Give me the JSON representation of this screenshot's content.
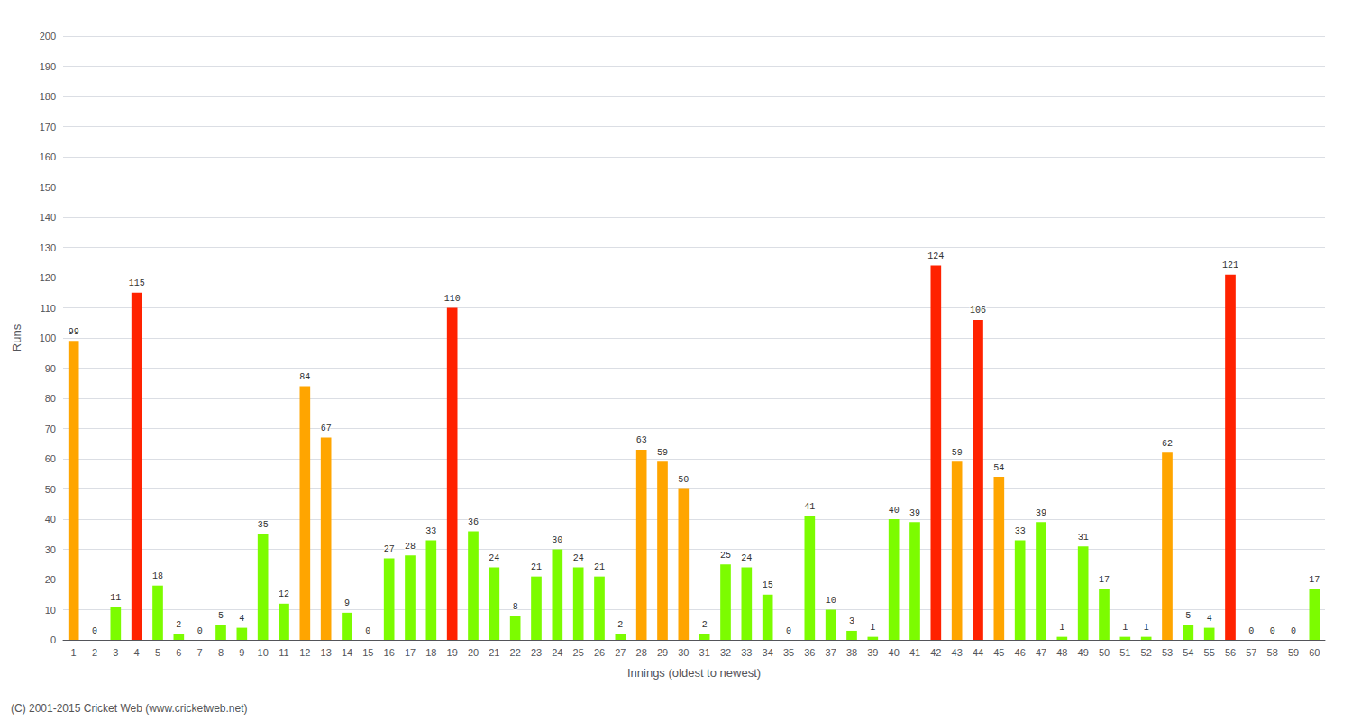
{
  "chart_data": {
    "type": "bar",
    "xlabel": "Innings (oldest to newest)",
    "ylabel": "Runs",
    "categories": [
      "1",
      "2",
      "3",
      "4",
      "5",
      "6",
      "7",
      "8",
      "9",
      "10",
      "11",
      "12",
      "13",
      "14",
      "15",
      "16",
      "17",
      "18",
      "19",
      "20",
      "21",
      "22",
      "23",
      "24",
      "25",
      "26",
      "27",
      "28",
      "29",
      "30",
      "31",
      "32",
      "33",
      "34",
      "35",
      "36",
      "37",
      "38",
      "39",
      "40",
      "41",
      "42",
      "43",
      "44",
      "45",
      "46",
      "47",
      "48",
      "49",
      "50",
      "51",
      "52",
      "53",
      "54",
      "55",
      "56",
      "57",
      "58",
      "59",
      "60"
    ],
    "values": [
      99,
      0,
      11,
      115,
      18,
      2,
      0,
      5,
      4,
      35,
      12,
      84,
      67,
      9,
      0,
      27,
      28,
      33,
      110,
      36,
      24,
      8,
      21,
      30,
      24,
      21,
      2,
      63,
      59,
      50,
      2,
      25,
      24,
      15,
      0,
      41,
      10,
      3,
      1,
      40,
      39,
      124,
      59,
      106,
      54,
      33,
      39,
      1,
      31,
      17,
      1,
      1,
      62,
      5,
      4,
      121,
      0,
      0,
      0,
      17
    ],
    "colors": [
      "#FFA500",
      "#7CFC00",
      "#7CFC00",
      "#FF2200",
      "#7CFC00",
      "#7CFC00",
      "#7CFC00",
      "#7CFC00",
      "#7CFC00",
      "#7CFC00",
      "#7CFC00",
      "#FFA500",
      "#FFA500",
      "#7CFC00",
      "#7CFC00",
      "#7CFC00",
      "#7CFC00",
      "#7CFC00",
      "#FF2200",
      "#7CFC00",
      "#7CFC00",
      "#7CFC00",
      "#7CFC00",
      "#7CFC00",
      "#7CFC00",
      "#7CFC00",
      "#7CFC00",
      "#FFA500",
      "#FFA500",
      "#FFA500",
      "#7CFC00",
      "#7CFC00",
      "#7CFC00",
      "#7CFC00",
      "#7CFC00",
      "#7CFC00",
      "#7CFC00",
      "#7CFC00",
      "#7CFC00",
      "#7CFC00",
      "#7CFC00",
      "#FF2200",
      "#FFA500",
      "#FF2200",
      "#FFA500",
      "#7CFC00",
      "#7CFC00",
      "#7CFC00",
      "#7CFC00",
      "#7CFC00",
      "#7CFC00",
      "#7CFC00",
      "#FFA500",
      "#7CFC00",
      "#7CFC00",
      "#FF2200",
      "#7CFC00",
      "#7CFC00",
      "#7CFC00",
      "#7CFC00"
    ],
    "ylim": [
      0,
      200
    ],
    "yticks": [
      0,
      10,
      20,
      30,
      40,
      50,
      60,
      70,
      80,
      90,
      100,
      110,
      120,
      130,
      140,
      150,
      160,
      170,
      180,
      190,
      200
    ],
    "grid": true,
    "data_labels": true,
    "annotations": [
      "(C) 2001-2015 Cricket Web (www.cricketweb.net)"
    ]
  }
}
